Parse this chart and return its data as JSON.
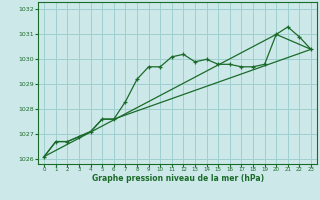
{
  "xlabel": "Graphe pression niveau de la mer (hPa)",
  "bg_color": "#cde8e8",
  "plot_bg_color": "#cde8e8",
  "grid_color": "#9ecfcf",
  "line_color": "#1a6b2a",
  "xlim": [
    -0.5,
    23.5
  ],
  "ylim": [
    1025.8,
    1032.3
  ],
  "yticks": [
    1026,
    1027,
    1028,
    1029,
    1030,
    1031,
    1032
  ],
  "xticks": [
    0,
    1,
    2,
    3,
    4,
    5,
    6,
    7,
    8,
    9,
    10,
    11,
    12,
    13,
    14,
    15,
    16,
    17,
    18,
    19,
    20,
    21,
    22,
    23
  ],
  "series1_x": [
    0,
    1,
    2,
    3,
    4,
    5,
    6,
    7,
    8,
    9,
    10,
    11,
    12,
    13,
    14,
    15,
    16,
    17,
    18,
    19,
    20,
    21,
    22,
    23
  ],
  "series1_y": [
    1026.1,
    1026.7,
    1026.7,
    1026.9,
    1027.1,
    1027.6,
    1027.6,
    1028.3,
    1029.2,
    1029.7,
    1029.7,
    1030.1,
    1030.2,
    1029.9,
    1030.0,
    1029.8,
    1029.8,
    1029.7,
    1029.7,
    1029.8,
    1031.0,
    1031.3,
    1030.9,
    1030.4
  ],
  "series2_x": [
    0,
    1,
    2,
    3,
    4,
    5,
    6,
    23
  ],
  "series2_y": [
    1026.1,
    1026.7,
    1026.7,
    1026.9,
    1027.1,
    1027.6,
    1027.6,
    1030.4
  ],
  "series3_x": [
    0,
    20,
    23
  ],
  "series3_y": [
    1026.1,
    1031.0,
    1030.4
  ]
}
